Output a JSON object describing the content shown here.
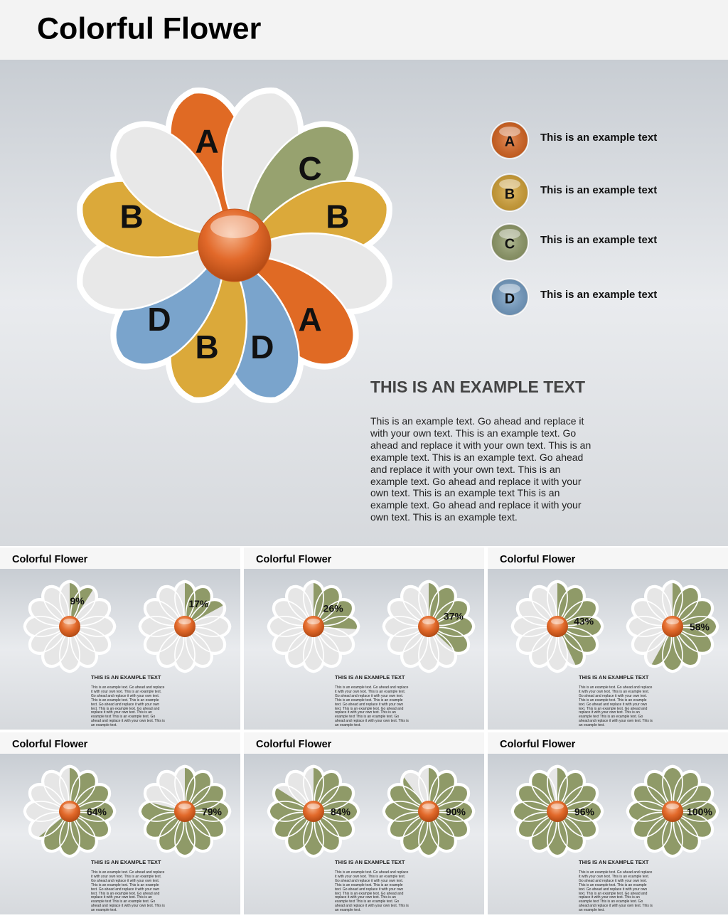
{
  "header": {
    "title": "Colorful Flower"
  },
  "flower": {
    "petals": [
      {
        "label": "A",
        "color": "#e06a24"
      },
      {
        "label": null,
        "color": "#e8e8e8"
      },
      {
        "label": "C",
        "color": "#97a26f"
      },
      {
        "label": "B",
        "color": "#dba93a"
      },
      {
        "label": null,
        "color": "#e8e8e8"
      },
      {
        "label": "A",
        "color": "#e06a24"
      },
      {
        "label": "D",
        "color": "#7aa4cc"
      },
      {
        "label": "B",
        "color": "#dba93a"
      },
      {
        "label": "D",
        "color": "#7aa4cc"
      },
      {
        "label": null,
        "color": "#e8e8e8"
      },
      {
        "label": "B",
        "color": "#dba93a"
      },
      {
        "label": null,
        "color": "#e8e8e8"
      }
    ]
  },
  "legend": [
    {
      "letter": "A",
      "text": "This is an example text",
      "color": "#e06a24"
    },
    {
      "letter": "B",
      "text": "This is an example text",
      "color": "#dba93a"
    },
    {
      "letter": "C",
      "text": "This is an example text",
      "color": "#97a26f"
    },
    {
      "letter": "D",
      "text": "This is an example text",
      "color": "#7aa4cc"
    }
  ],
  "text_block": {
    "heading": "THIS IS AN EXAMPLE TEXT",
    "body": "This is an example text. Go ahead and replace it with your own text. This is an example text. Go ahead and replace it with your own text. This is an example text. This is an example text. Go ahead and replace it with your own text. This is an example text. Go ahead and replace it with your own text. This is an example text This is an example text. Go ahead and replace it with your own text. This is an example text."
  },
  "thumbs": [
    {
      "title": "Colorful Flower",
      "flowers": [
        {
          "value": 9,
          "value_label": "9%"
        },
        {
          "value": 17,
          "value_label": "17%"
        }
      ],
      "heading": "THIS IS AN EXAMPLE TEXT",
      "body": "This is an example text. Go ahead and replace it with your own text. This is an example text. Go ahead and replace it with your own text. This is an example text. This is an example text. Go ahead and replace it with your own text. This is an example text. Go ahead and replace it with your own text. This is an example text This is an example text. Go ahead and replace it with your own text. This is an example text."
    },
    {
      "title": "Colorful Flower",
      "flowers": [
        {
          "value": 26,
          "value_label": "26%"
        },
        {
          "value": 37,
          "value_label": "37%"
        }
      ],
      "heading": "THIS IS AN EXAMPLE TEXT",
      "body": "This is an example text. Go ahead and replace it with your own text. This is an example text. Go ahead and replace it with your own text. This is an example text. This is an example text. Go ahead and replace it with your own text. This is an example text. Go ahead and replace it with your own text. This is an example text This is an example text. Go ahead and replace it with your own text. This is an example text."
    },
    {
      "title": "Colorful Flower",
      "flowers": [
        {
          "value": 43,
          "value_label": "43%"
        },
        {
          "value": 58,
          "value_label": "58%"
        }
      ],
      "heading": "THIS IS AN EXAMPLE TEXT",
      "body": "This is an example text. Go ahead and replace it with your own text. This is an example text. Go ahead and replace it with your own text. This is an example text. This is an example text. Go ahead and replace it with your own text. This is an example text. Go ahead and replace it with your own text. This is an example text This is an example text. Go ahead and replace it with your own text. This is an example text."
    },
    {
      "title": "Colorful Flower",
      "flowers": [
        {
          "value": 64,
          "value_label": "64%"
        },
        {
          "value": 79,
          "value_label": "79%"
        }
      ],
      "heading": "THIS IS AN EXAMPLE TEXT",
      "body": "This is an example text. Go ahead and replace it with your own text. This is an example text. Go ahead and replace it with your own text. This is an example text. This is an example text. Go ahead and replace it with your own text. This is an example text. Go ahead and replace it with your own text. This is an example text This is an example text. Go ahead and replace it with your own text. This is an example text."
    },
    {
      "title": "Colorful Flower",
      "flowers": [
        {
          "value": 84,
          "value_label": "84%"
        },
        {
          "value": 90,
          "value_label": "90%"
        }
      ],
      "heading": "THIS IS AN EXAMPLE TEXT",
      "body": "This is an example text. Go ahead and replace it with your own text. This is an example text. Go ahead and replace it with your own text. This is an example text. This is an example text. Go ahead and replace it with your own text. This is an example text. Go ahead and replace it with your own text. This is an example text This is an example text. Go ahead and replace it with your own text. This is an example text."
    },
    {
      "title": "Colorful Flower",
      "flowers": [
        {
          "value": 96,
          "value_label": "96%"
        },
        {
          "value": 100,
          "value_label": "100%"
        }
      ],
      "heading": "THIS IS AN EXAMPLE TEXT",
      "body": "This is an example text. Go ahead and replace it with your own text. This is an example text. Go ahead and replace it with your own text. This is an example text. This is an example text. Go ahead and replace it with your own text. This is an example text. Go ahead and replace it with your own text. This is an example text This is an example text. Go ahead and replace it with your own text. This is an example text."
    }
  ]
}
